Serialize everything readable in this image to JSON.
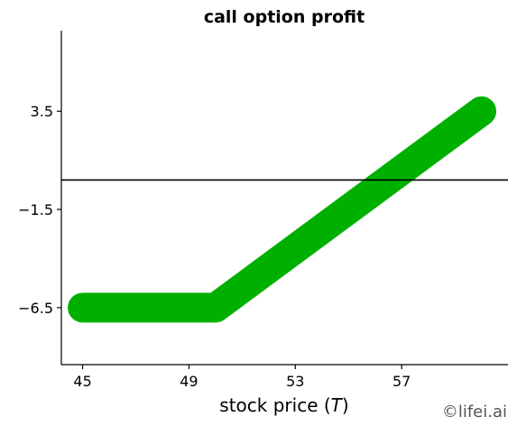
{
  "chart_data": {
    "type": "line",
    "title": "call option profit",
    "xlabel_prefix": "stock price (",
    "xlabel_symbol": "T",
    "xlabel_suffix": ")",
    "ylabel": "",
    "xlim": [
      44.2,
      61.0
    ],
    "ylim": [
      -9.4,
      7.6
    ],
    "xticks": [
      45,
      49,
      53,
      57
    ],
    "xtick_labels": [
      "45",
      "49",
      "53",
      "57"
    ],
    "yticks": [
      3.5,
      -1.5,
      -6.5
    ],
    "ytick_labels": [
      "3.5",
      "−1.5",
      "−6.5"
    ],
    "reference_line_y": 0,
    "series": [
      {
        "color": "#00b000",
        "points": [
          {
            "x": 45,
            "y": -6.5
          },
          {
            "x": 50,
            "y": -6.5
          },
          {
            "x": 60,
            "y": 3.5
          }
        ]
      }
    ],
    "grid": false
  },
  "watermark": "©lifei.ai"
}
